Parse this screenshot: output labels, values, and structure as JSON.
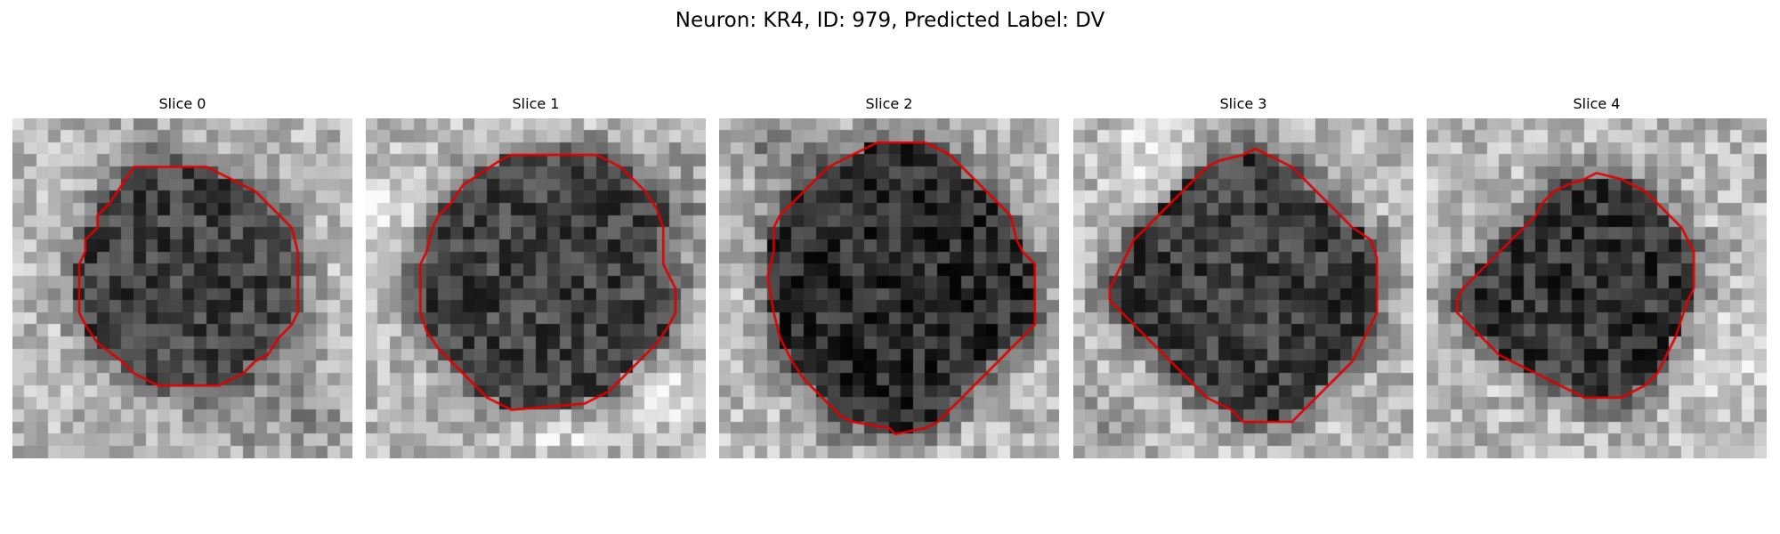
{
  "figure": {
    "title": "Neuron: KR4, ID: 979, Predicted Label: DV",
    "contour_color": "#e00000",
    "panels": [
      {
        "title": "Slice 0",
        "contour": "irregular octagon, centered slightly left",
        "cell_darkness": 0.55
      },
      {
        "title": "Slice 1",
        "contour": "large rounded octagon, centered",
        "cell_darkness": 0.55
      },
      {
        "title": "Slice 2",
        "contour": "large rounded octagon, very dark interior",
        "cell_darkness": 0.8
      },
      {
        "title": "Slice 3",
        "contour": "rounded octagon, centered",
        "cell_darkness": 0.6
      },
      {
        "title": "Slice 4",
        "contour": "smaller irregular shape, centered right-lower",
        "cell_darkness": 0.7
      }
    ]
  }
}
